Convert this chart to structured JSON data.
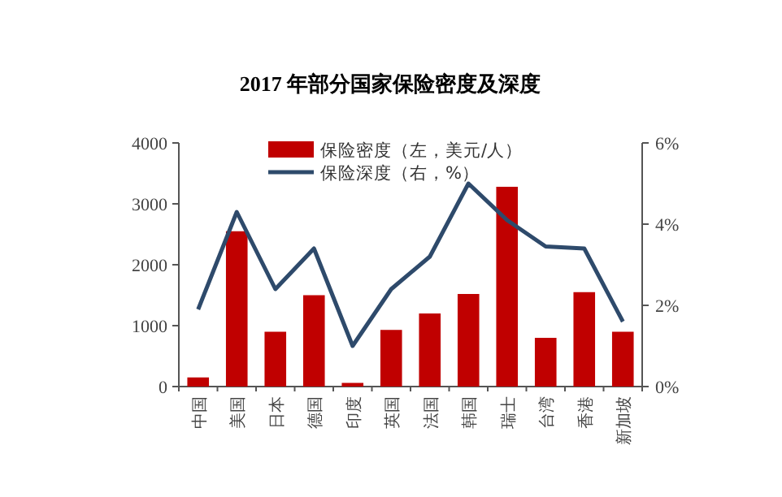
{
  "chart_data": {
    "type": "bar",
    "title": "2017 年部分国家保险密度及深度",
    "categories": [
      "中国",
      "美国",
      "日本",
      "德国",
      "印度",
      "英国",
      "法国",
      "韩国",
      "瑞士",
      "台湾",
      "香港",
      "新加坡"
    ],
    "series": [
      {
        "name": "保险密度（左，美元/人）",
        "color": "#c00000",
        "values": [
          150,
          2550,
          900,
          1500,
          60,
          930,
          1200,
          1520,
          3280,
          800,
          1550,
          900
        ]
      },
      {
        "name": "保险深度（右，%）",
        "type": "line",
        "axis": "y2",
        "color": "#2e4a6b",
        "values": [
          1.9,
          4.3,
          2.4,
          3.4,
          1.0,
          2.4,
          3.2,
          5.0,
          4.1,
          3.45,
          3.4,
          1.6
        ]
      }
    ],
    "ylim": [
      0,
      4000
    ],
    "yticks": [
      0,
      1000,
      2000,
      3000,
      4000
    ],
    "y2lim": [
      0,
      6
    ],
    "y2ticks": [
      {
        "value": 0,
        "label": "0%"
      },
      {
        "value": 2,
        "label": "2%"
      },
      {
        "value": 4,
        "label": "4%"
      },
      {
        "value": 6,
        "label": "6%"
      }
    ],
    "legend": "top",
    "grid": false
  }
}
